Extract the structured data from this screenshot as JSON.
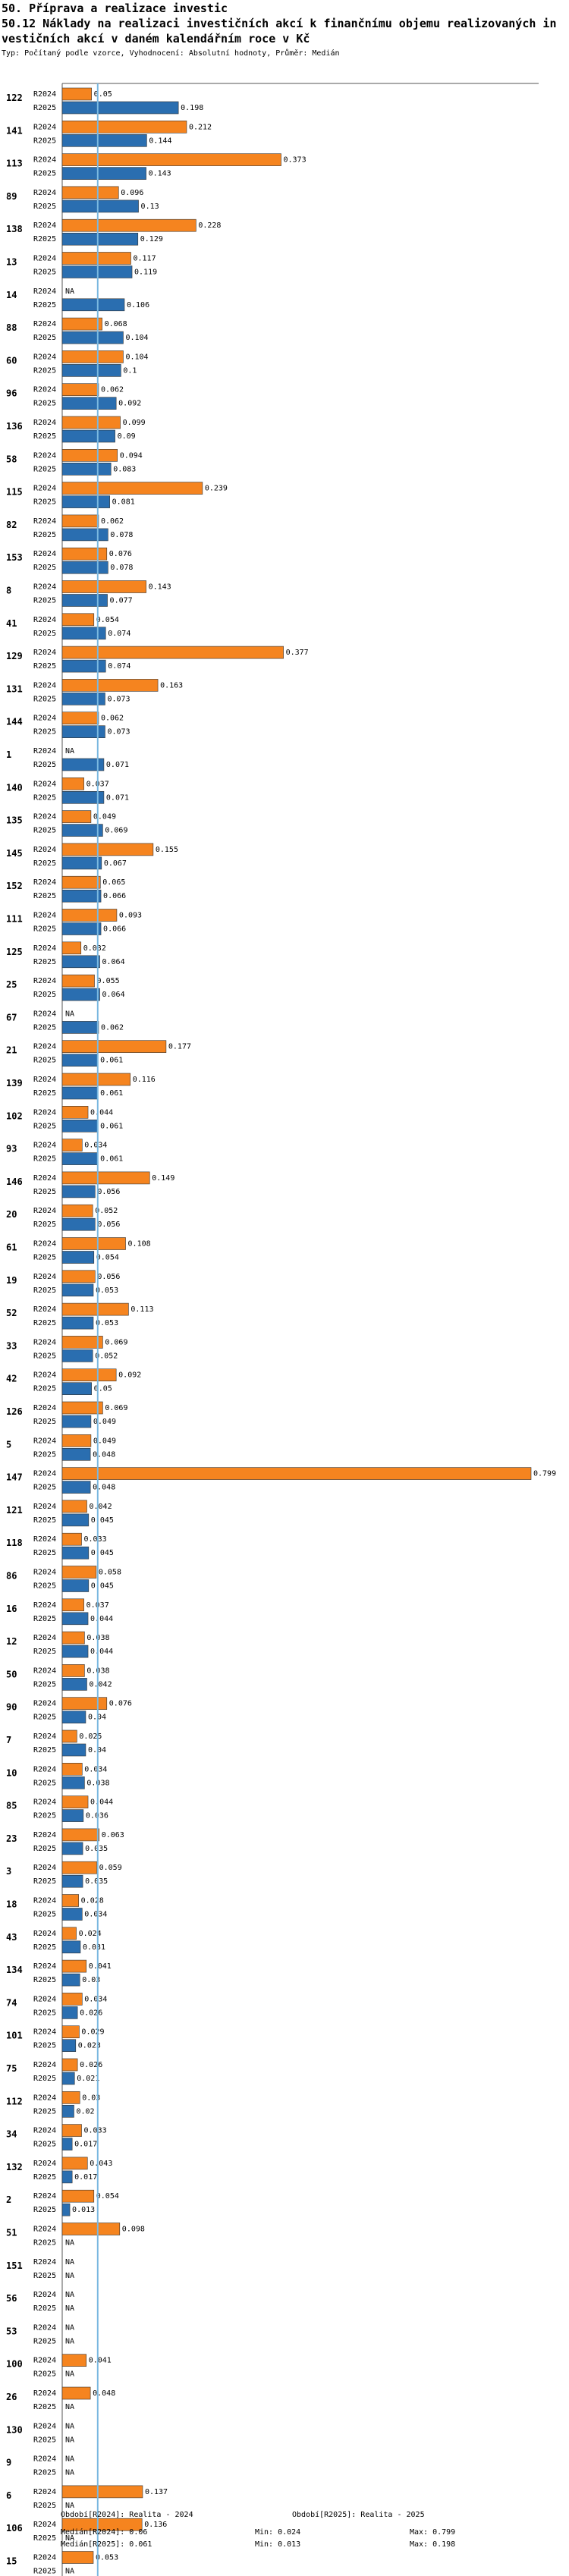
{
  "header": {
    "section": "50. Příprava a realizace investic",
    "title_line1": "50.12 Náklady na realizaci investičních akcí k finančnímu objemu realizovaných in",
    "title_line2": "vestičních akcí v daném kalendářním roce v Kč",
    "subtitle": "Typ: Počítaný podle vzorce, Vyhodnocení: Absolutní hodnoty, Průměr: Medián"
  },
  "colors": {
    "r2024": "#f5841f",
    "r2025": "#2a6eb0",
    "median_line": "#7ab8e0",
    "axis": "#555555"
  },
  "chart_data": {
    "type": "bar",
    "orientation": "horizontal",
    "series_labels": [
      "R2024",
      "R2025"
    ],
    "x_range": [
      0,
      0.799
    ],
    "missing_label": "NA",
    "categories": [
      {
        "id": "122",
        "r2024": 0.05,
        "r2025": 0.198
      },
      {
        "id": "141",
        "r2024": 0.212,
        "r2025": 0.144
      },
      {
        "id": "113",
        "r2024": 0.373,
        "r2025": 0.143
      },
      {
        "id": "89",
        "r2024": 0.096,
        "r2025": 0.13
      },
      {
        "id": "138",
        "r2024": 0.228,
        "r2025": 0.129
      },
      {
        "id": "13",
        "r2024": 0.117,
        "r2025": 0.119
      },
      {
        "id": "14",
        "r2024": null,
        "r2025": 0.106
      },
      {
        "id": "88",
        "r2024": 0.068,
        "r2025": 0.104
      },
      {
        "id": "60",
        "r2024": 0.104,
        "r2025": 0.1
      },
      {
        "id": "96",
        "r2024": 0.062,
        "r2025": 0.092
      },
      {
        "id": "136",
        "r2024": 0.099,
        "r2025": 0.09
      },
      {
        "id": "58",
        "r2024": 0.094,
        "r2025": 0.083
      },
      {
        "id": "115",
        "r2024": 0.239,
        "r2025": 0.081
      },
      {
        "id": "82",
        "r2024": 0.062,
        "r2025": 0.078
      },
      {
        "id": "153",
        "r2024": 0.076,
        "r2025": 0.078
      },
      {
        "id": "8",
        "r2024": 0.143,
        "r2025": 0.077
      },
      {
        "id": "41",
        "r2024": 0.054,
        "r2025": 0.074
      },
      {
        "id": "129",
        "r2024": 0.377,
        "r2025": 0.074
      },
      {
        "id": "131",
        "r2024": 0.163,
        "r2025": 0.073
      },
      {
        "id": "144",
        "r2024": 0.062,
        "r2025": 0.073
      },
      {
        "id": "1",
        "r2024": null,
        "r2025": 0.071
      },
      {
        "id": "140",
        "r2024": 0.037,
        "r2025": 0.071
      },
      {
        "id": "135",
        "r2024": 0.049,
        "r2025": 0.069
      },
      {
        "id": "145",
        "r2024": 0.155,
        "r2025": 0.067
      },
      {
        "id": "152",
        "r2024": 0.065,
        "r2025": 0.066
      },
      {
        "id": "111",
        "r2024": 0.093,
        "r2025": 0.066
      },
      {
        "id": "125",
        "r2024": 0.032,
        "r2025": 0.064
      },
      {
        "id": "25",
        "r2024": 0.055,
        "r2025": 0.064
      },
      {
        "id": "67",
        "r2024": null,
        "r2025": 0.062
      },
      {
        "id": "21",
        "r2024": 0.177,
        "r2025": 0.061
      },
      {
        "id": "139",
        "r2024": 0.116,
        "r2025": 0.061
      },
      {
        "id": "102",
        "r2024": 0.044,
        "r2025": 0.061
      },
      {
        "id": "93",
        "r2024": 0.034,
        "r2025": 0.061
      },
      {
        "id": "146",
        "r2024": 0.149,
        "r2025": 0.056
      },
      {
        "id": "20",
        "r2024": 0.052,
        "r2025": 0.056
      },
      {
        "id": "61",
        "r2024": 0.108,
        "r2025": 0.054
      },
      {
        "id": "19",
        "r2024": 0.056,
        "r2025": 0.053
      },
      {
        "id": "52",
        "r2024": 0.113,
        "r2025": 0.053
      },
      {
        "id": "33",
        "r2024": 0.069,
        "r2025": 0.052
      },
      {
        "id": "42",
        "r2024": 0.092,
        "r2025": 0.05
      },
      {
        "id": "126",
        "r2024": 0.069,
        "r2025": 0.049
      },
      {
        "id": "5",
        "r2024": 0.049,
        "r2025": 0.048
      },
      {
        "id": "147",
        "r2024": 0.799,
        "r2025": 0.048
      },
      {
        "id": "121",
        "r2024": 0.042,
        "r2025": 0.045
      },
      {
        "id": "118",
        "r2024": 0.033,
        "r2025": 0.045
      },
      {
        "id": "86",
        "r2024": 0.058,
        "r2025": 0.045
      },
      {
        "id": "16",
        "r2024": 0.037,
        "r2025": 0.044
      },
      {
        "id": "12",
        "r2024": 0.038,
        "r2025": 0.044
      },
      {
        "id": "50",
        "r2024": 0.038,
        "r2025": 0.042
      },
      {
        "id": "90",
        "r2024": 0.076,
        "r2025": 0.04
      },
      {
        "id": "7",
        "r2024": 0.025,
        "r2025": 0.04
      },
      {
        "id": "10",
        "r2024": 0.034,
        "r2025": 0.038
      },
      {
        "id": "85",
        "r2024": 0.044,
        "r2025": 0.036
      },
      {
        "id": "23",
        "r2024": 0.063,
        "r2025": 0.035
      },
      {
        "id": "3",
        "r2024": 0.059,
        "r2025": 0.035
      },
      {
        "id": "18",
        "r2024": 0.028,
        "r2025": 0.034
      },
      {
        "id": "43",
        "r2024": 0.024,
        "r2025": 0.031
      },
      {
        "id": "134",
        "r2024": 0.041,
        "r2025": 0.03
      },
      {
        "id": "74",
        "r2024": 0.034,
        "r2025": 0.026
      },
      {
        "id": "101",
        "r2024": 0.029,
        "r2025": 0.023
      },
      {
        "id": "75",
        "r2024": 0.026,
        "r2025": 0.021
      },
      {
        "id": "112",
        "r2024": 0.03,
        "r2025": 0.02
      },
      {
        "id": "34",
        "r2024": 0.033,
        "r2025": 0.017
      },
      {
        "id": "132",
        "r2024": 0.043,
        "r2025": 0.017
      },
      {
        "id": "2",
        "r2024": 0.054,
        "r2025": 0.013
      },
      {
        "id": "51",
        "r2024": 0.098,
        "r2025": null
      },
      {
        "id": "151",
        "r2024": null,
        "r2025": null
      },
      {
        "id": "56",
        "r2024": null,
        "r2025": null
      },
      {
        "id": "53",
        "r2024": null,
        "r2025": null
      },
      {
        "id": "100",
        "r2024": 0.041,
        "r2025": null
      },
      {
        "id": "26",
        "r2024": 0.048,
        "r2025": null
      },
      {
        "id": "130",
        "r2024": null,
        "r2025": null
      },
      {
        "id": "9",
        "r2024": null,
        "r2025": null
      },
      {
        "id": "6",
        "r2024": 0.137,
        "r2025": null
      },
      {
        "id": "106",
        "r2024": 0.136,
        "r2025": null
      },
      {
        "id": "15",
        "r2024": 0.053,
        "r2025": null
      }
    ],
    "medians": {
      "r2024": 0.06,
      "r2025": 0.061
    }
  },
  "footer": {
    "period_2024": "Období[R2024]: Realita - 2024",
    "period_2025": "Období[R2025]: Realita - 2025",
    "median_2024": "Medián[R2024]: 0.06",
    "median_2025": "Medián[R2025]: 0.061",
    "min_2024": "Min: 0.024",
    "min_2025": "Min: 0.013",
    "max_2024": "Max: 0.799",
    "max_2025": "Max: 0.198"
  }
}
